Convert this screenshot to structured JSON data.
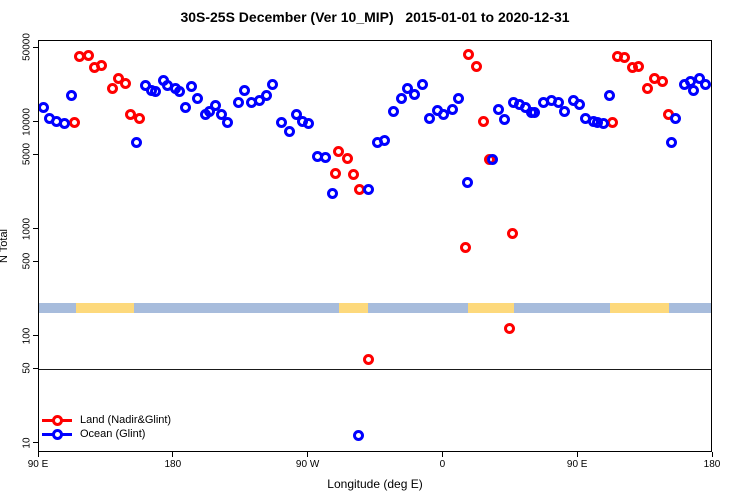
{
  "title": "30S-25S December (Ver 10_MIP)   2015-01-01 to 2020-12-31",
  "axes": {
    "y_label": "N Total",
    "x_label": "Longitude (deg E)",
    "y_scale": "log",
    "y_ticks": [
      {
        "value": 50000,
        "label": "50000"
      },
      {
        "value": 10000,
        "label": "10000"
      },
      {
        "value": 5000,
        "label": "5000"
      },
      {
        "value": 1000,
        "label": "1000"
      },
      {
        "value": 500,
        "label": "500"
      },
      {
        "value": 100,
        "label": "100"
      },
      {
        "value": 50,
        "label": "50"
      },
      {
        "value": 10,
        "label": "10"
      }
    ],
    "x_ticks": [
      {
        "value": 90,
        "label": "90 E"
      },
      {
        "value": 180,
        "label": "180"
      },
      {
        "value": 270,
        "label": "90 W"
      },
      {
        "value": 360,
        "label": "0"
      },
      {
        "value": 450,
        "label": "90 E"
      },
      {
        "value": 540,
        "label": "180"
      }
    ],
    "x_range": [
      90,
      540
    ]
  },
  "reference_line": {
    "value": 50
  },
  "map_strip": {
    "land_color": "#fdd97c",
    "ocean_color": "#a7bcdc",
    "segments": [
      {
        "from": 90,
        "to": 114.4,
        "surface": "ocean"
      },
      {
        "from": 114.4,
        "to": 153.5,
        "surface": "land"
      },
      {
        "from": 153.5,
        "to": 290.4,
        "surface": "ocean"
      },
      {
        "from": 290.4,
        "to": 309.8,
        "surface": "land"
      },
      {
        "from": 309.8,
        "to": 376.4,
        "surface": "ocean"
      },
      {
        "from": 376.4,
        "to": 407.2,
        "surface": "land"
      },
      {
        "from": 407.2,
        "to": 471.4,
        "surface": "ocean"
      },
      {
        "from": 471.4,
        "to": 510.8,
        "surface": "land"
      },
      {
        "from": 510.8,
        "to": 540,
        "surface": "ocean"
      }
    ]
  },
  "legend": {
    "items": [
      {
        "label": "Land (Nadir&Glint)",
        "color": "#ff0000"
      },
      {
        "label": "Ocean (Glint)",
        "color": "#0000ff"
      }
    ]
  },
  "chart_data": {
    "type": "scatter",
    "title": "30S-25S December (Ver 10_MIP)   2015-01-01 to 2020-12-31",
    "xlabel": "Longitude (deg E)",
    "ylabel": "N Total",
    "x_note": "longitude plotted continuously eastward from 90E (90) through 180 (180), 90W (270), 0 (360), 90E (450) to 180 (540)",
    "ylim_log": [
      10,
      50000
    ],
    "series": [
      {
        "name": "Land (Nadir&Glint)",
        "color": "#ff0000",
        "points": [
          [
            117,
            41400
          ],
          [
            123,
            42300
          ],
          [
            127,
            32700
          ],
          [
            132,
            34100
          ],
          [
            139,
            21200
          ],
          [
            143,
            26300
          ],
          [
            148,
            23600
          ],
          [
            114,
            10000
          ],
          [
            151,
            11900
          ],
          [
            157,
            11100
          ],
          [
            288,
            3400
          ],
          [
            290,
            5400
          ],
          [
            296,
            4700
          ],
          [
            300,
            3300
          ],
          [
            304,
            2400
          ],
          [
            310,
            62
          ],
          [
            375,
            680
          ],
          [
            377,
            43200
          ],
          [
            382,
            33400
          ],
          [
            387,
            10400
          ],
          [
            391,
            4600
          ],
          [
            404,
            120
          ],
          [
            406,
            920
          ],
          [
            473,
            10000
          ],
          [
            476,
            41400
          ],
          [
            481,
            40500
          ],
          [
            486,
            32700
          ],
          [
            490,
            33400
          ],
          [
            496,
            21200
          ],
          [
            501,
            26300
          ],
          [
            506,
            24200
          ],
          [
            510,
            11900
          ]
        ]
      },
      {
        "name": "Ocean (Glint)",
        "color": "#0000ff",
        "points": [
          [
            93,
            14100
          ],
          [
            97,
            11100
          ],
          [
            102,
            10400
          ],
          [
            107,
            9800
          ],
          [
            112,
            17900
          ],
          [
            155,
            6600
          ],
          [
            161,
            22200
          ],
          [
            165,
            20300
          ],
          [
            168,
            19900
          ],
          [
            173,
            24700
          ],
          [
            176,
            22200
          ],
          [
            181,
            21200
          ],
          [
            184,
            19900
          ],
          [
            188,
            14100
          ],
          [
            192,
            21700
          ],
          [
            196,
            16800
          ],
          [
            201,
            11900
          ],
          [
            204,
            12700
          ],
          [
            208,
            14700
          ],
          [
            212,
            11900
          ],
          [
            216,
            10000
          ],
          [
            223,
            15700
          ],
          [
            227,
            20300
          ],
          [
            232,
            15400
          ],
          [
            237,
            16100
          ],
          [
            242,
            17900
          ],
          [
            246,
            22700
          ],
          [
            252,
            10000
          ],
          [
            257,
            8400
          ],
          [
            262,
            12100
          ],
          [
            266,
            10400
          ],
          [
            270,
            9800
          ],
          [
            276,
            4900
          ],
          [
            281,
            4800
          ],
          [
            286,
            2200
          ],
          [
            303,
            12
          ],
          [
            310,
            2400
          ],
          [
            316,
            6600
          ],
          [
            321,
            6800
          ],
          [
            327,
            12700
          ],
          [
            332,
            17100
          ],
          [
            336,
            20800
          ],
          [
            341,
            18300
          ],
          [
            346,
            22700
          ],
          [
            351,
            10900
          ],
          [
            356,
            13200
          ],
          [
            360,
            11900
          ],
          [
            366,
            13500
          ],
          [
            370,
            16800
          ],
          [
            376,
            2800
          ],
          [
            393,
            4600
          ],
          [
            397,
            13500
          ],
          [
            401,
            10700
          ],
          [
            407,
            15400
          ],
          [
            411,
            15000
          ],
          [
            415,
            14100
          ],
          [
            419,
            12400
          ],
          [
            421,
            12400
          ],
          [
            427,
            15400
          ],
          [
            432,
            16100
          ],
          [
            437,
            15400
          ],
          [
            441,
            12900
          ],
          [
            447,
            16400
          ],
          [
            451,
            15000
          ],
          [
            455,
            11100
          ],
          [
            460,
            10400
          ],
          [
            463,
            10000
          ],
          [
            467,
            9800
          ],
          [
            471,
            17900
          ],
          [
            512,
            6600
          ],
          [
            515,
            11100
          ],
          [
            521,
            22700
          ],
          [
            525,
            24200
          ],
          [
            527,
            20300
          ],
          [
            531,
            26300
          ],
          [
            535,
            22700
          ]
        ]
      }
    ]
  }
}
